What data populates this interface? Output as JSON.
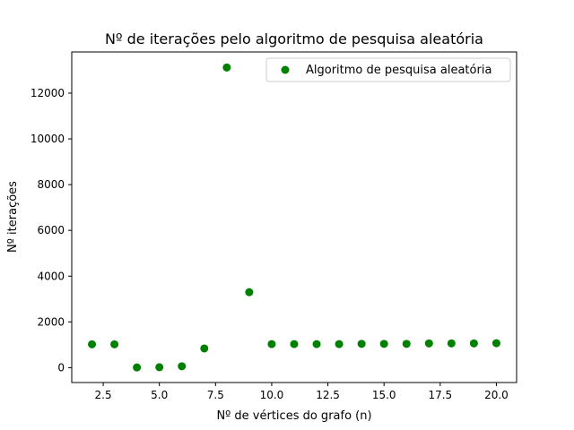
{
  "chart_data": {
    "type": "scatter",
    "title": "Nº de iterações pelo algoritmo de pesquisa aleatória",
    "xlabel": "Nº de vértices do grafo (n)",
    "ylabel": "Nº iterações",
    "xlim": [
      1.1,
      20.9
    ],
    "ylim": [
      -650,
      13800
    ],
    "x_ticks": [
      2.5,
      5.0,
      7.5,
      10.0,
      12.5,
      15.0,
      17.5,
      20.0
    ],
    "x_tick_labels": [
      "2.5",
      "5.0",
      "7.5",
      "10.0",
      "12.5",
      "15.0",
      "17.5",
      "20.0"
    ],
    "y_ticks": [
      0,
      2000,
      4000,
      6000,
      8000,
      10000,
      12000
    ],
    "y_tick_labels": [
      "0",
      "2000",
      "4000",
      "6000",
      "8000",
      "10000",
      "12000"
    ],
    "grid": false,
    "legend_position": "top-right",
    "series": [
      {
        "name": "Algoritmo de pesquisa aleatória",
        "color": "#008000",
        "x": [
          2,
          3,
          4,
          5,
          6,
          7,
          8,
          9,
          10,
          11,
          12,
          13,
          14,
          15,
          16,
          17,
          18,
          19,
          20
        ],
        "y": [
          1020,
          1020,
          10,
          20,
          60,
          840,
          13120,
          3300,
          1030,
          1030,
          1030,
          1030,
          1040,
          1040,
          1040,
          1060,
          1060,
          1060,
          1070
        ]
      }
    ]
  }
}
